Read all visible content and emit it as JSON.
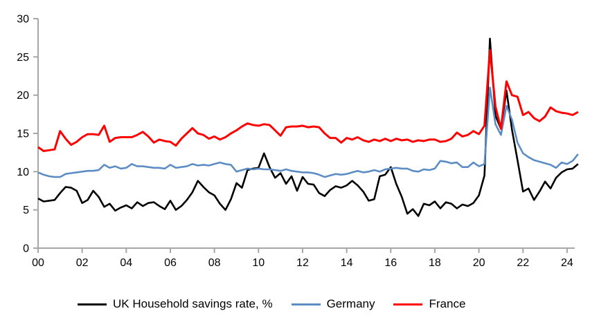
{
  "chart_data": {
    "type": "line",
    "title": "",
    "xlabel": "",
    "ylabel": "",
    "grid": false,
    "legend_position": "bottom",
    "axis_color": "#a6a6a6",
    "ylim": [
      0,
      30
    ],
    "y_ticks": [
      "0",
      "5",
      "10",
      "15",
      "20",
      "25",
      "30"
    ],
    "y_tick_values": [
      0,
      5,
      10,
      15,
      20,
      25,
      30
    ],
    "x_tick_labels": [
      "00",
      "02",
      "04",
      "06",
      "08",
      "10",
      "12",
      "14",
      "16",
      "18",
      "20",
      "22",
      "24"
    ],
    "x_tick_values": [
      2000,
      2002,
      2004,
      2006,
      2008,
      2010,
      2012,
      2014,
      2016,
      2018,
      2020,
      2022,
      2024
    ],
    "x_start": 2000.0,
    "x_step": 0.25,
    "frequency": "quarterly",
    "series": [
      {
        "name": "UK Household savings rate, %",
        "color": "#000000",
        "line_width": 2.6,
        "values": [
          6.5,
          6.1,
          6.2,
          6.3,
          7.2,
          8.0,
          7.9,
          7.5,
          5.9,
          6.3,
          7.5,
          6.7,
          5.4,
          5.8,
          4.9,
          5.3,
          5.6,
          5.2,
          6.0,
          5.5,
          5.9,
          6.0,
          5.5,
          5.1,
          6.2,
          5.0,
          5.5,
          6.3,
          7.3,
          8.8,
          8.0,
          7.3,
          6.9,
          5.8,
          5.0,
          6.4,
          8.5,
          7.9,
          10.2,
          10.4,
          10.5,
          12.4,
          10.6,
          9.2,
          9.8,
          8.4,
          9.4,
          7.5,
          9.3,
          8.4,
          8.3,
          7.2,
          6.8,
          7.6,
          8.1,
          7.9,
          8.2,
          8.8,
          8.2,
          7.4,
          6.2,
          6.4,
          9.4,
          9.6,
          10.6,
          8.4,
          6.7,
          4.5,
          5.1,
          4.2,
          5.8,
          5.6,
          6.1,
          5.2,
          6.0,
          5.8,
          5.2,
          5.7,
          5.5,
          5.9,
          6.9,
          9.5,
          27.4,
          17.3,
          15.6,
          20.6,
          15.5,
          11.5,
          7.4,
          7.8,
          6.3,
          7.4,
          8.7,
          7.8,
          9.2,
          9.9,
          10.3,
          10.4,
          11.0
        ]
      },
      {
        "name": "Germany",
        "color": "#5b8dc4",
        "line_width": 2.6,
        "values": [
          9.9,
          9.6,
          9.4,
          9.3,
          9.3,
          9.7,
          9.8,
          9.9,
          10.0,
          10.1,
          10.1,
          10.2,
          10.9,
          10.5,
          10.7,
          10.4,
          10.5,
          11.0,
          10.7,
          10.7,
          10.6,
          10.5,
          10.5,
          10.4,
          10.9,
          10.5,
          10.6,
          10.7,
          11.0,
          10.8,
          10.9,
          10.8,
          11.0,
          11.2,
          11.0,
          10.9,
          10.0,
          10.2,
          10.4,
          10.3,
          10.4,
          10.3,
          10.3,
          10.2,
          10.1,
          10.3,
          10.1,
          10.0,
          9.9,
          9.9,
          9.8,
          9.6,
          9.3,
          9.5,
          9.7,
          9.6,
          9.7,
          9.9,
          10.1,
          9.9,
          10.0,
          10.2,
          10.0,
          10.3,
          10.4,
          10.5,
          10.4,
          10.4,
          10.1,
          10.0,
          10.3,
          10.2,
          10.4,
          11.4,
          11.3,
          11.1,
          11.2,
          10.6,
          10.6,
          11.2,
          10.7,
          11.0,
          21.0,
          16.2,
          14.8,
          18.6,
          16.8,
          13.8,
          12.4,
          11.9,
          11.5,
          11.3,
          11.1,
          10.9,
          10.5,
          11.2,
          11.0,
          11.4,
          12.3
        ]
      },
      {
        "name": "France",
        "color": "#ff0000",
        "line_width": 3,
        "values": [
          13.2,
          12.7,
          12.8,
          12.9,
          15.3,
          14.3,
          13.5,
          13.9,
          14.5,
          14.9,
          14.9,
          14.8,
          16.0,
          13.9,
          14.4,
          14.5,
          14.5,
          14.5,
          14.8,
          15.2,
          14.6,
          13.8,
          14.2,
          14.0,
          13.9,
          13.4,
          14.3,
          15.0,
          15.7,
          15.0,
          14.8,
          14.3,
          14.6,
          14.2,
          14.5,
          15.0,
          15.4,
          15.9,
          16.3,
          16.1,
          16.0,
          16.2,
          16.1,
          15.4,
          14.7,
          15.8,
          15.9,
          15.9,
          16.0,
          15.8,
          15.9,
          15.8,
          15.0,
          14.4,
          14.4,
          13.8,
          14.4,
          14.2,
          14.5,
          14.1,
          13.9,
          14.2,
          14.0,
          14.3,
          14.0,
          14.3,
          14.1,
          14.2,
          13.9,
          14.1,
          14.0,
          14.2,
          14.2,
          13.9,
          14.0,
          14.3,
          15.1,
          14.6,
          14.8,
          15.3,
          14.9,
          16.0,
          25.9,
          18.5,
          15.6,
          21.8,
          20.0,
          19.8,
          17.4,
          17.8,
          17.0,
          16.6,
          17.2,
          18.4,
          17.9,
          17.7,
          17.6,
          17.4,
          17.8
        ]
      }
    ]
  }
}
